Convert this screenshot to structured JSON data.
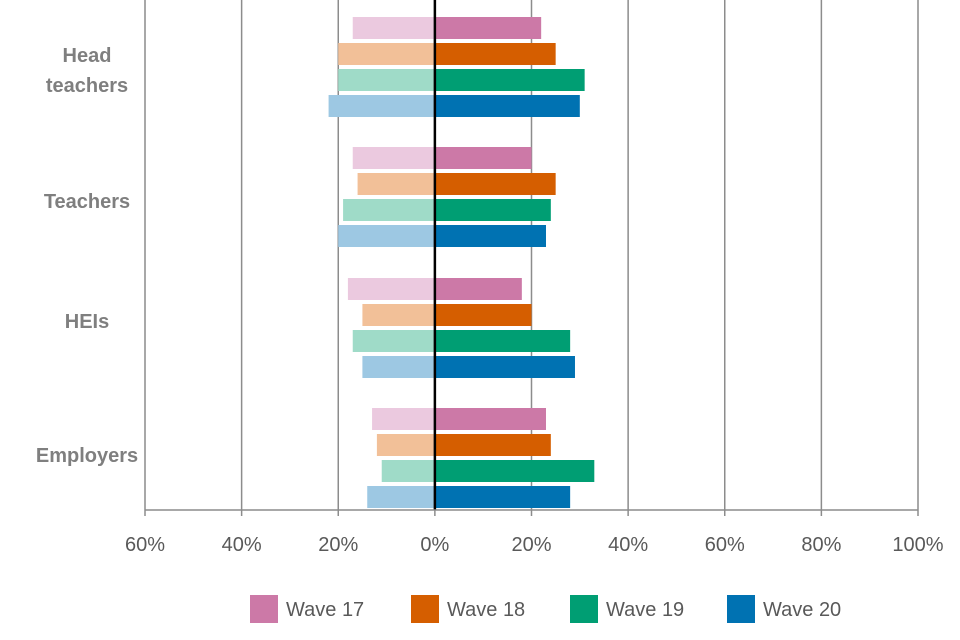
{
  "chart_data": {
    "type": "bar",
    "orientation": "horizontal",
    "layout": "diverging",
    "categories": [
      "Head teachers",
      "Teachers",
      "HEIs",
      "Employers"
    ],
    "x_ticks": [
      "60%",
      "40%",
      "20%",
      "0%",
      "20%",
      "40%",
      "60%",
      "80%",
      "100%"
    ],
    "xlim": [
      -60,
      100
    ],
    "grid": true,
    "legend_position": "bottom",
    "series": [
      {
        "name": "Wave 17",
        "color": "#cc79a7",
        "light_color": "#ebc9df",
        "positive": [
          22,
          20,
          18,
          23
        ],
        "negative": [
          17,
          17,
          18,
          13
        ]
      },
      {
        "name": "Wave 18",
        "color": "#d55e00",
        "light_color": "#f2c098",
        "positive": [
          25,
          25,
          20,
          24
        ],
        "negative": [
          20,
          16,
          15,
          12
        ]
      },
      {
        "name": "Wave 19",
        "color": "#009e73",
        "light_color": "#9fdbc8",
        "positive": [
          31,
          24,
          28,
          33
        ],
        "negative": [
          20,
          19,
          17,
          11
        ]
      },
      {
        "name": "Wave 20",
        "color": "#0072b2",
        "light_color": "#9dc8e3",
        "positive": [
          30,
          23,
          29,
          28
        ],
        "negative": [
          22,
          20,
          15,
          14
        ]
      }
    ]
  }
}
